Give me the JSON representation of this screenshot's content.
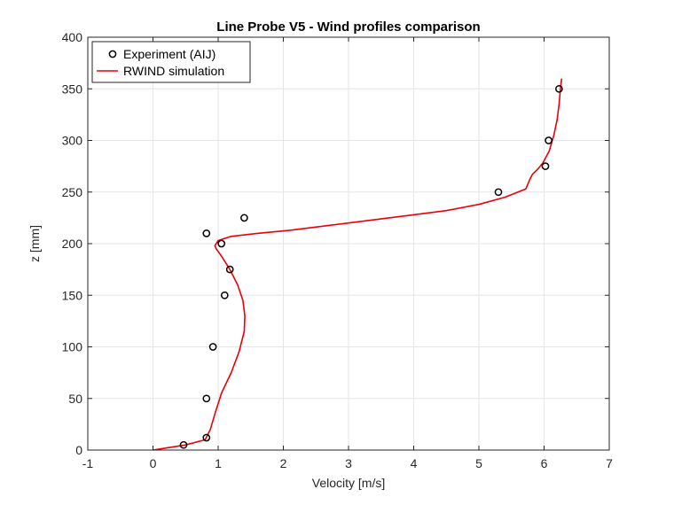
{
  "chart_data": {
    "type": "line",
    "title": "Line Probe V5 - Wind profiles comparison",
    "xlabel": "Velocity [m/s]",
    "ylabel": "z [mm]",
    "xlim": [
      -1,
      7
    ],
    "ylim": [
      0,
      400
    ],
    "x_ticks": [
      "-1",
      "0",
      "1",
      "2",
      "3",
      "4",
      "5",
      "6",
      "7"
    ],
    "y_ticks": [
      "0",
      "50",
      "100",
      "150",
      "200",
      "250",
      "300",
      "350",
      "400"
    ],
    "grid": true,
    "legend_position": "top-left",
    "colors": {
      "simulation": "#e8000b",
      "experiment": "#000000",
      "grid": "#e6e6e6",
      "axis": "#262626"
    },
    "series": [
      {
        "name": "Experiment (AIJ)",
        "kind": "scatter",
        "marker": "circle",
        "x": [
          0.47,
          0.82,
          0.82,
          0.92,
          1.1,
          1.18,
          1.05,
          0.82,
          1.4,
          5.3,
          6.02,
          6.07,
          6.23
        ],
        "y": [
          5,
          12,
          50,
          100,
          150,
          175,
          200,
          210,
          225,
          250,
          275,
          300,
          350
        ]
      },
      {
        "name": "RWIND simulation",
        "kind": "line",
        "x": [
          0.0,
          0.2,
          0.5,
          0.8,
          0.88,
          0.95,
          1.05,
          1.2,
          1.32,
          1.4,
          1.41,
          1.38,
          1.3,
          1.18,
          1.05,
          0.97,
          0.95,
          1.0,
          1.2,
          1.6,
          2.1,
          3.0,
          4.0,
          4.5,
          5.0,
          5.4,
          5.72,
          5.78,
          5.82,
          5.9,
          5.98,
          6.08,
          6.15,
          6.2,
          6.23,
          6.25,
          6.27
        ],
        "y": [
          0,
          2,
          5,
          10,
          20,
          35,
          55,
          75,
          95,
          115,
          130,
          145,
          160,
          175,
          188,
          195,
          198,
          203,
          207,
          210,
          213,
          220,
          228,
          232,
          238,
          245,
          253,
          262,
          267,
          272,
          278,
          290,
          305,
          320,
          335,
          350,
          360
        ]
      }
    ]
  }
}
